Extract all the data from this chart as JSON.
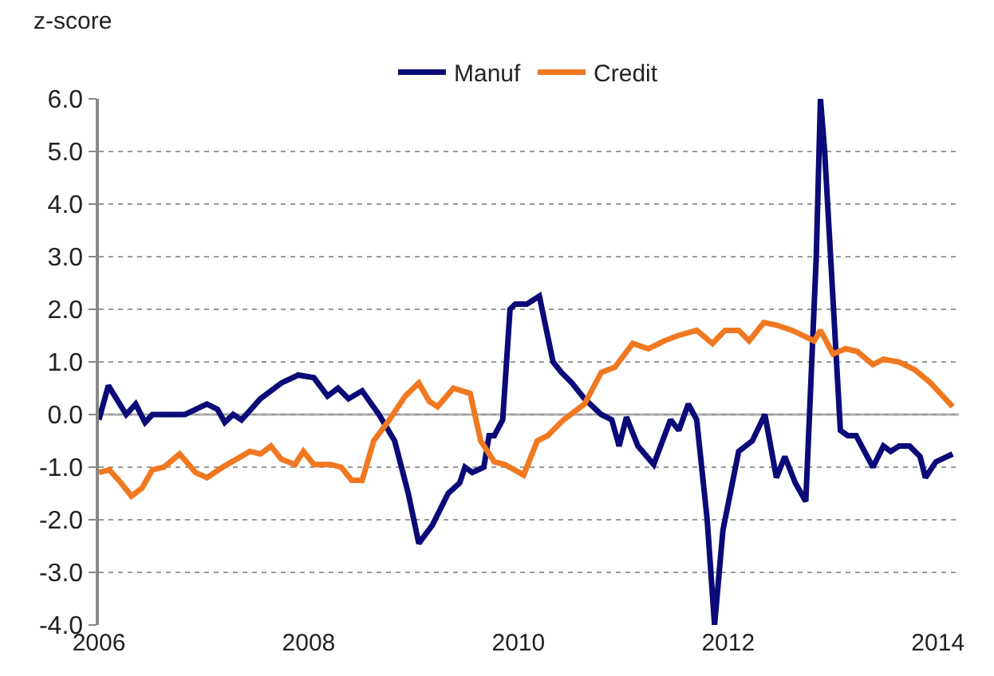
{
  "chart_data": {
    "type": "line",
    "ylabel": "z-score",
    "legend": "top",
    "grid": "y",
    "xlim": [
      2006,
      2014.2
    ],
    "xticks": [
      2006,
      2008,
      2010,
      2012,
      2014
    ],
    "ylim": [
      -4,
      6
    ],
    "yticks": [
      {
        "value": -4,
        "label": "-4.0"
      },
      {
        "value": -3,
        "label": "-3.0"
      },
      {
        "value": -2,
        "label": "-2.0"
      },
      {
        "value": -1,
        "label": "-1.0"
      },
      {
        "value": 0,
        "label": "0.0"
      },
      {
        "value": 1,
        "label": "1.0"
      },
      {
        "value": 2,
        "label": "2.0"
      },
      {
        "value": 3,
        "label": "3.0"
      },
      {
        "value": 4,
        "label": "4.0"
      },
      {
        "value": 5,
        "label": "5.0"
      },
      {
        "value": 6,
        "label": "6.0"
      }
    ],
    "ref_lines": [
      {
        "axis": "y",
        "value": 0,
        "color": "#b0b0b0",
        "line_style": "solid"
      }
    ],
    "series": [
      {
        "name": "Manuf",
        "color": "#0a0a78",
        "x": [
          2006.0,
          2006.09,
          2006.26,
          2006.35,
          2006.44,
          2006.51,
          2006.82,
          2007.03,
          2007.13,
          2007.2,
          2007.28,
          2007.36,
          2007.54,
          2007.74,
          2007.9,
          2008.05,
          2008.18,
          2008.28,
          2008.38,
          2008.51,
          2008.67,
          2008.82,
          2008.95,
          2009.05,
          2009.18,
          2009.33,
          2009.44,
          2009.49,
          2009.56,
          2009.67,
          2009.72,
          2009.77,
          2009.85,
          2009.92,
          2009.97,
          2010.08,
          2010.2,
          2010.33,
          2010.41,
          2010.51,
          2010.63,
          2010.79,
          2010.89,
          2010.96,
          2011.03,
          2011.14,
          2011.29,
          2011.45,
          2011.53,
          2011.62,
          2011.7,
          2011.8,
          2011.87,
          2011.95,
          2012.1,
          2012.23,
          2012.35,
          2012.46,
          2012.54,
          2012.64,
          2012.74,
          2012.84,
          2012.88,
          2012.92,
          2013.07,
          2013.14,
          2013.22,
          2013.38,
          2013.48,
          2013.55,
          2013.63,
          2013.73,
          2013.83,
          2013.88,
          2013.98,
          2014.14
        ],
        "values": [
          -0.1,
          0.55,
          0.0,
          0.2,
          -0.15,
          0.0,
          0.0,
          0.2,
          0.1,
          -0.15,
          0.0,
          -0.1,
          0.3,
          0.6,
          0.75,
          0.7,
          0.35,
          0.5,
          0.3,
          0.45,
          0.0,
          -0.5,
          -1.5,
          -2.45,
          -2.1,
          -1.5,
          -1.3,
          -1.0,
          -1.1,
          -1.0,
          -0.4,
          -0.4,
          -0.1,
          2.0,
          2.1,
          2.1,
          2.25,
          1.0,
          0.8,
          0.6,
          0.3,
          0.0,
          -0.1,
          -0.6,
          -0.05,
          -0.6,
          -0.95,
          -0.1,
          -0.3,
          0.2,
          -0.1,
          -2.0,
          -4.0,
          -2.2,
          -0.7,
          -0.5,
          0.0,
          -1.2,
          -0.8,
          -1.3,
          -1.65,
          3.0,
          6.0,
          5.0,
          -0.3,
          -0.4,
          -0.4,
          -1.0,
          -0.6,
          -0.7,
          -0.6,
          -0.6,
          -0.8,
          -1.2,
          -0.9,
          -0.75
        ]
      },
      {
        "name": "Credit",
        "color": "#f07820",
        "x": [
          2006.0,
          2006.1,
          2006.21,
          2006.31,
          2006.41,
          2006.51,
          2006.62,
          2006.77,
          2006.92,
          2007.03,
          2007.18,
          2007.31,
          2007.44,
          2007.54,
          2007.64,
          2007.74,
          2007.87,
          2007.95,
          2008.05,
          2008.21,
          2008.31,
          2008.41,
          2008.51,
          2008.62,
          2008.77,
          2008.92,
          2009.05,
          2009.15,
          2009.23,
          2009.38,
          2009.54,
          2009.64,
          2009.77,
          2009.87,
          2010.05,
          2010.18,
          2010.28,
          2010.43,
          2010.63,
          2010.79,
          2010.92,
          2011.09,
          2011.24,
          2011.39,
          2011.52,
          2011.7,
          2011.85,
          2011.97,
          2012.1,
          2012.2,
          2012.34,
          2012.46,
          2012.61,
          2012.82,
          2012.88,
          2013.0,
          2013.12,
          2013.23,
          2013.38,
          2013.48,
          2013.63,
          2013.78,
          2013.93,
          2014.14
        ],
        "values": [
          -1.1,
          -1.05,
          -1.3,
          -1.55,
          -1.4,
          -1.05,
          -1.0,
          -0.75,
          -1.1,
          -1.2,
          -1.0,
          -0.85,
          -0.7,
          -0.75,
          -0.6,
          -0.85,
          -0.95,
          -0.7,
          -0.95,
          -0.95,
          -1.0,
          -1.25,
          -1.25,
          -0.5,
          -0.1,
          0.35,
          0.6,
          0.25,
          0.15,
          0.5,
          0.4,
          -0.5,
          -0.9,
          -0.95,
          -1.15,
          -0.5,
          -0.4,
          -0.1,
          0.2,
          0.8,
          0.9,
          1.35,
          1.25,
          1.4,
          1.5,
          1.6,
          1.35,
          1.6,
          1.6,
          1.4,
          1.75,
          1.7,
          1.6,
          1.4,
          1.6,
          1.15,
          1.25,
          1.2,
          0.95,
          1.05,
          1.0,
          0.85,
          0.6,
          0.15
        ]
      }
    ]
  }
}
